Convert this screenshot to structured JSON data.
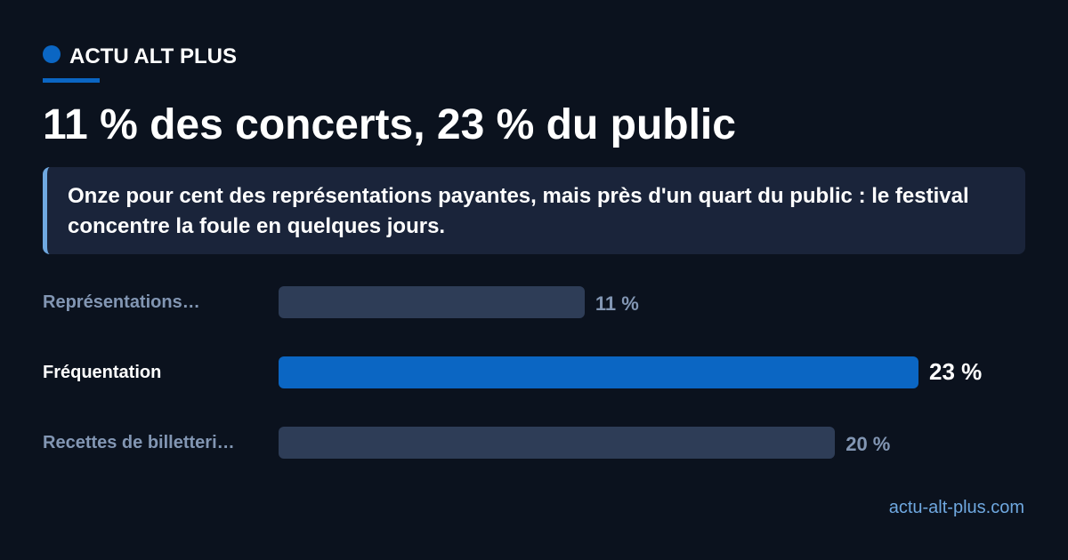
{
  "brand": "ACTU ALT PLUS",
  "chart_data": {
    "type": "bar",
    "orientation": "horizontal",
    "title": "11 % des concerts, 23 % du public",
    "subtitle": "Onze pour cent des représentations payantes, mais près d'un quart du public : le festival concentre la foule en quelques jours.",
    "categories": [
      "Représentations…",
      "Fréquentation",
      "Recettes de billetteri…"
    ],
    "values": [
      11,
      23,
      20
    ],
    "value_labels": [
      "11 %",
      "23 %",
      "20 %"
    ],
    "colors": [
      "#2e3d57",
      "#0b66c3",
      "#2e3d57"
    ],
    "highlight": 1
  },
  "source": "actu-alt-plus.com"
}
